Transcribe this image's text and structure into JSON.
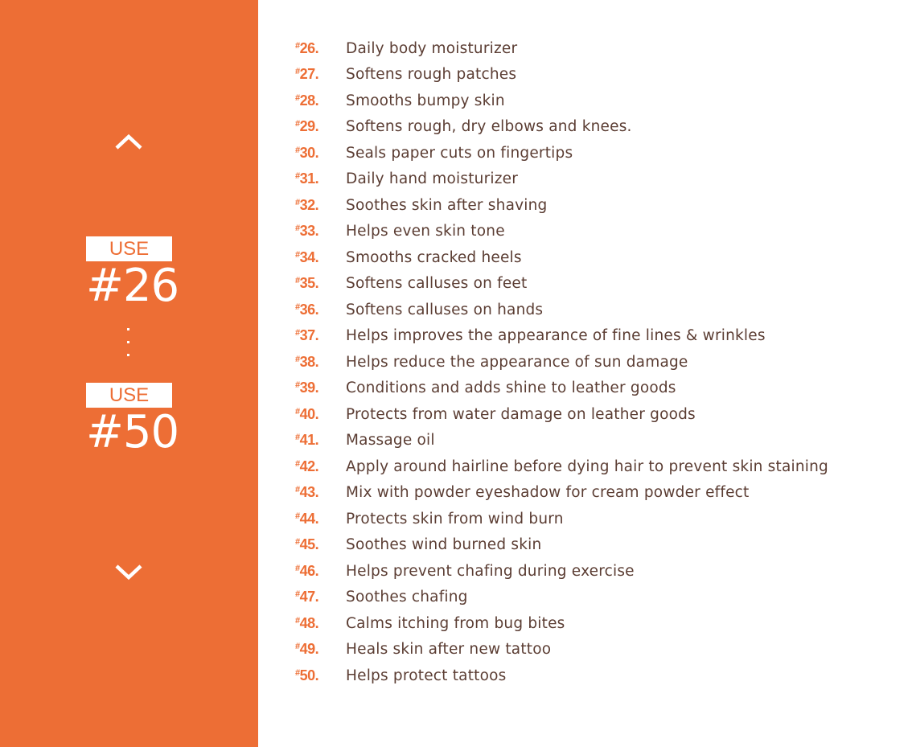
{
  "colors": {
    "accent": "#ED6E35",
    "text": "#5b3d33"
  },
  "sidebar": {
    "prev_icon": "chevron-up-icon",
    "next_icon": "chevron-down-icon",
    "from_label": "USE",
    "from_number": "#26",
    "to_label": "USE",
    "to_number": "#50"
  },
  "uses": [
    {
      "number": "26.",
      "text": "Daily body moisturizer"
    },
    {
      "number": "27.",
      "text": "Softens rough patches"
    },
    {
      "number": "28.",
      "text": "Smooths bumpy skin"
    },
    {
      "number": "29.",
      "text": "Softens rough, dry elbows and knees."
    },
    {
      "number": "30.",
      "text": "Seals paper cuts on fingertips"
    },
    {
      "number": "31.",
      "text": "Daily hand moisturizer"
    },
    {
      "number": "32.",
      "text": "Soothes skin after shaving"
    },
    {
      "number": "33.",
      "text": "Helps even skin tone"
    },
    {
      "number": "34.",
      "text": "Smooths cracked heels"
    },
    {
      "number": "35.",
      "text": "Softens calluses on feet"
    },
    {
      "number": "36.",
      "text": "Softens calluses on hands"
    },
    {
      "number": "37.",
      "text": "Helps improves the appearance of fine lines & wrinkles"
    },
    {
      "number": "38.",
      "text": "Helps reduce the appearance of sun damage"
    },
    {
      "number": "39.",
      "text": "Conditions and adds shine to leather goods"
    },
    {
      "number": "40.",
      "text": "Protects from water damage on leather goods"
    },
    {
      "number": "41.",
      "text": "Massage oil"
    },
    {
      "number": "42.",
      "text": "Apply around hairline before dying hair to prevent skin staining"
    },
    {
      "number": "43.",
      "text": "Mix with powder eyeshadow for cream powder effect"
    },
    {
      "number": "44.",
      "text": "Protects skin from wind burn"
    },
    {
      "number": "45.",
      "text": "Soothes wind burned skin"
    },
    {
      "number": "46.",
      "text": "Helps prevent chafing during exercise"
    },
    {
      "number": "47.",
      "text": "Soothes chafing"
    },
    {
      "number": "48.",
      "text": "Calms itching from bug bites"
    },
    {
      "number": "49.",
      "text": "Heals skin after new tattoo"
    },
    {
      "number": "50.",
      "text": "Helps protect tattoos"
    }
  ]
}
